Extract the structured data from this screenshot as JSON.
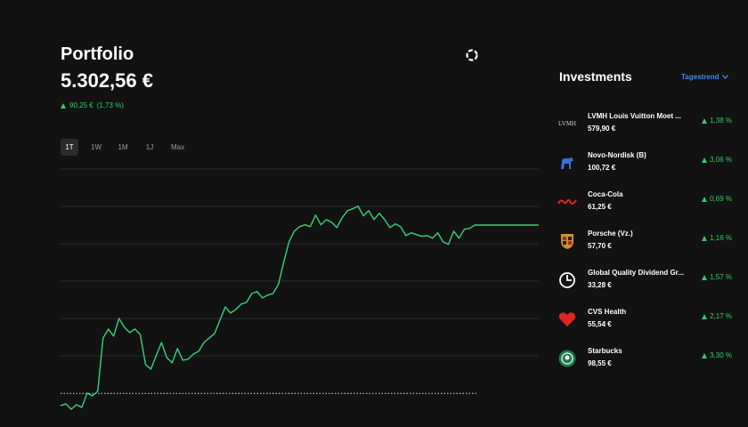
{
  "header": {
    "title": "Portfolio",
    "value": "5.302,56 €",
    "change_abs": "90,25 €",
    "change_pct": "(1,73 %)"
  },
  "tabs": {
    "items": [
      "1T",
      "1W",
      "1M",
      "1J",
      "Max"
    ],
    "selected": 0
  },
  "chart_data": {
    "type": "line",
    "color": "#35d27a",
    "ylim": [
      5200,
      5335
    ],
    "grid": true,
    "previous_close": 5212.31,
    "values": [
      5205.7,
      5206.7,
      5203.8,
      5206.2,
      5204.8,
      5212.4,
      5211.0,
      5213.4,
      5242.0,
      5246.8,
      5243.0,
      5252.5,
      5247.8,
      5244.9,
      5246.8,
      5243.9,
      5227.7,
      5225.3,
      5232.5,
      5239.6,
      5231.5,
      5228.7,
      5236.3,
      5230.1,
      5230.6,
      5233.4,
      5234.9,
      5239.6,
      5242.0,
      5244.4,
      5251.6,
      5258.7,
      5255.4,
      5257.3,
      5260.2,
      5261.1,
      5265.9,
      5266.9,
      5263.5,
      5265.0,
      5265.9,
      5270.7,
      5282.6,
      5293.6,
      5299.3,
      5301.7,
      5302.7,
      5301.7,
      5307.9,
      5302.7,
      5305.5,
      5304.1,
      5301.2,
      5306.5,
      5310.3,
      5311.3,
      5312.7,
      5307.5,
      5310.3,
      5305.5,
      5308.9,
      5305.5,
      5301.2,
      5303.2,
      5301.7,
      5296.9,
      5298.4,
      5297.4,
      5296.5,
      5296.9,
      5295.5,
      5298.4,
      5293.6,
      5292.2,
      5299.3,
      5295.5,
      5300.3,
      5300.8,
      5302.56,
      5302.56,
      5302.56,
      5302.56,
      5302.56,
      5302.56,
      5302.56,
      5302.56,
      5302.56,
      5302.56,
      5302.56,
      5302.56,
      5302.56
    ]
  },
  "investments": {
    "title": "Investments",
    "sort_label": "Tagestrend",
    "items": [
      {
        "name": "LVMH Louis Vuitton Moet ...",
        "price": "579,90 €",
        "change": "1,38 %",
        "logo": "lvmh",
        "logo_text": "LVMH"
      },
      {
        "name": "Novo-Nordisk (B)",
        "price": "100,72 €",
        "change": "3,06 %",
        "logo": "novo"
      },
      {
        "name": "Coca-Cola",
        "price": "61,25 €",
        "change": "0,69 %",
        "logo": "coke"
      },
      {
        "name": "Porsche (Vz.)",
        "price": "57,70 €",
        "change": "1,16 %",
        "logo": "porsche"
      },
      {
        "name": "Global Quality Dividend Gr...",
        "price": "33,28 €",
        "change": "1,57 %",
        "logo": "clock"
      },
      {
        "name": "CVS Health",
        "price": "55,54 €",
        "change": "2,17 %",
        "logo": "heart"
      },
      {
        "name": "Starbucks",
        "price": "98,55 €",
        "change": "3,30 %",
        "logo": "starbucks"
      }
    ]
  }
}
